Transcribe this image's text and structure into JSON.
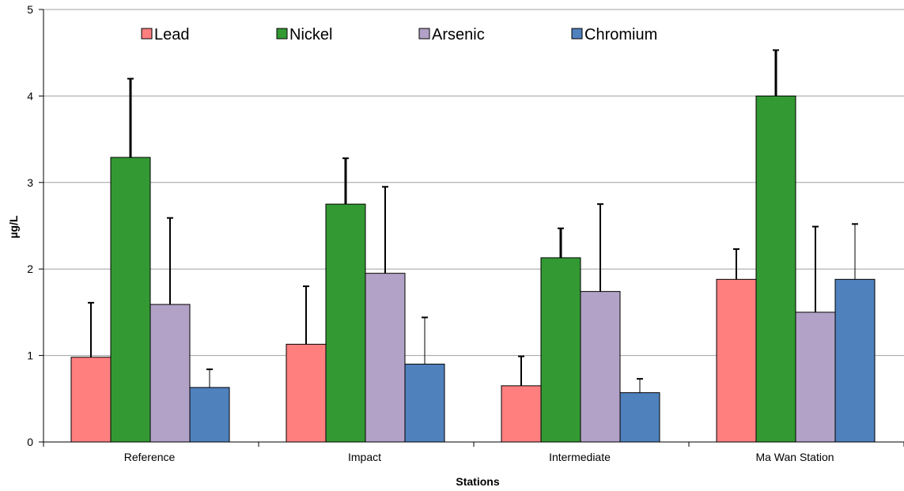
{
  "chart_data": {
    "type": "bar",
    "title": "",
    "xlabel": "Stations",
    "ylabel": "µg/L",
    "ylim": [
      0,
      5
    ],
    "yticks": [
      0,
      1,
      2,
      3,
      4,
      5
    ],
    "grid": true,
    "legend_position": "top",
    "categories": [
      "Reference",
      "Impact",
      "Intermediate",
      "Ma Wan Station"
    ],
    "series": [
      {
        "name": "Lead",
        "color": "#ff7f7f",
        "values": [
          0.98,
          1.13,
          0.65,
          1.88
        ],
        "error_upper": [
          0.63,
          0.67,
          0.34,
          0.35
        ],
        "error_stroke": 2
      },
      {
        "name": "Nickel",
        "color": "#339933",
        "values": [
          3.29,
          2.75,
          2.13,
          4.0
        ],
        "error_upper": [
          0.91,
          0.53,
          0.34,
          0.53
        ],
        "error_stroke": 3
      },
      {
        "name": "Arsenic",
        "color": "#b3a2c7",
        "values": [
          1.59,
          1.95,
          1.74,
          1.5
        ],
        "error_upper": [
          1.0,
          1.0,
          1.01,
          0.99
        ],
        "error_stroke": 2
      },
      {
        "name": "Chromium",
        "color": "#4f81bd",
        "values": [
          0.63,
          0.9,
          0.57,
          1.88
        ],
        "error_upper": [
          0.21,
          0.54,
          0.16,
          0.64
        ],
        "error_stroke": 1
      }
    ]
  }
}
